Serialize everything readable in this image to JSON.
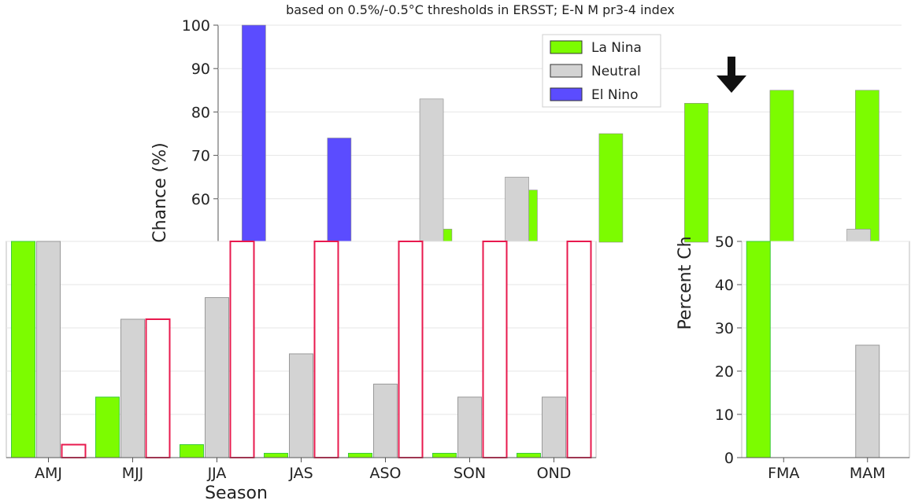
{
  "chart_data": [
    {
      "type": "bar",
      "title": "based on 0.5%/-0.5°C thresholds in ERSST; E-N M pr3-4 index",
      "ylabel": "Chance (%)",
      "ylim": [
        50,
        100
      ],
      "yticks": [
        60,
        70,
        80,
        90,
        100
      ],
      "legend_position": "top-right",
      "series": [
        {
          "name": "La Nina",
          "color": "#7cfc00",
          "values": [
            50,
            50,
            53,
            62,
            75,
            82,
            85,
            85
          ]
        },
        {
          "name": "Neutral",
          "color": "#d3d3d3",
          "values": [
            50,
            50,
            83,
            65,
            50,
            50,
            50,
            53
          ]
        },
        {
          "name": "El Nino",
          "color": "#5b4cff",
          "values": [
            100,
            74,
            50,
            50,
            50,
            50,
            50,
            50
          ]
        }
      ],
      "grid": true
    },
    {
      "type": "bar",
      "xlabel": "Season",
      "categories": [
        "AMJ",
        "MJJ",
        "JJA",
        "JAS",
        "ASO",
        "SON",
        "OND"
      ],
      "ylim": [
        0,
        50
      ],
      "series": [
        {
          "name": "La Nina",
          "color": "#7cfc00",
          "values": [
            50,
            14,
            3,
            1,
            1,
            1,
            1
          ]
        },
        {
          "name": "Neutral",
          "color": "#d3d3d3",
          "values": [
            50,
            32,
            37,
            24,
            17,
            14,
            14
          ]
        },
        {
          "name": "El Nino",
          "color": "#e8194d",
          "values": [
            3,
            32,
            50,
            50,
            50,
            50,
            50
          ]
        }
      ],
      "grid": true
    },
    {
      "type": "bar",
      "ylabel": "Percent Ch",
      "categories": [
        "FMA",
        "MAM"
      ],
      "ylim": [
        0,
        50
      ],
      "yticks": [
        0,
        10,
        20,
        30,
        40,
        50
      ],
      "series": [
        {
          "name": "La Nina",
          "color": "#7cfc00",
          "values": [
            50,
            0
          ]
        },
        {
          "name": "Neutral",
          "color": "#d3d3d3",
          "values": [
            0,
            26
          ]
        },
        {
          "name": "El Nino",
          "color": "#e8194d",
          "values": [
            0,
            0
          ]
        }
      ],
      "grid": true
    }
  ],
  "icons": {
    "arrow": "down-arrow-icon"
  }
}
